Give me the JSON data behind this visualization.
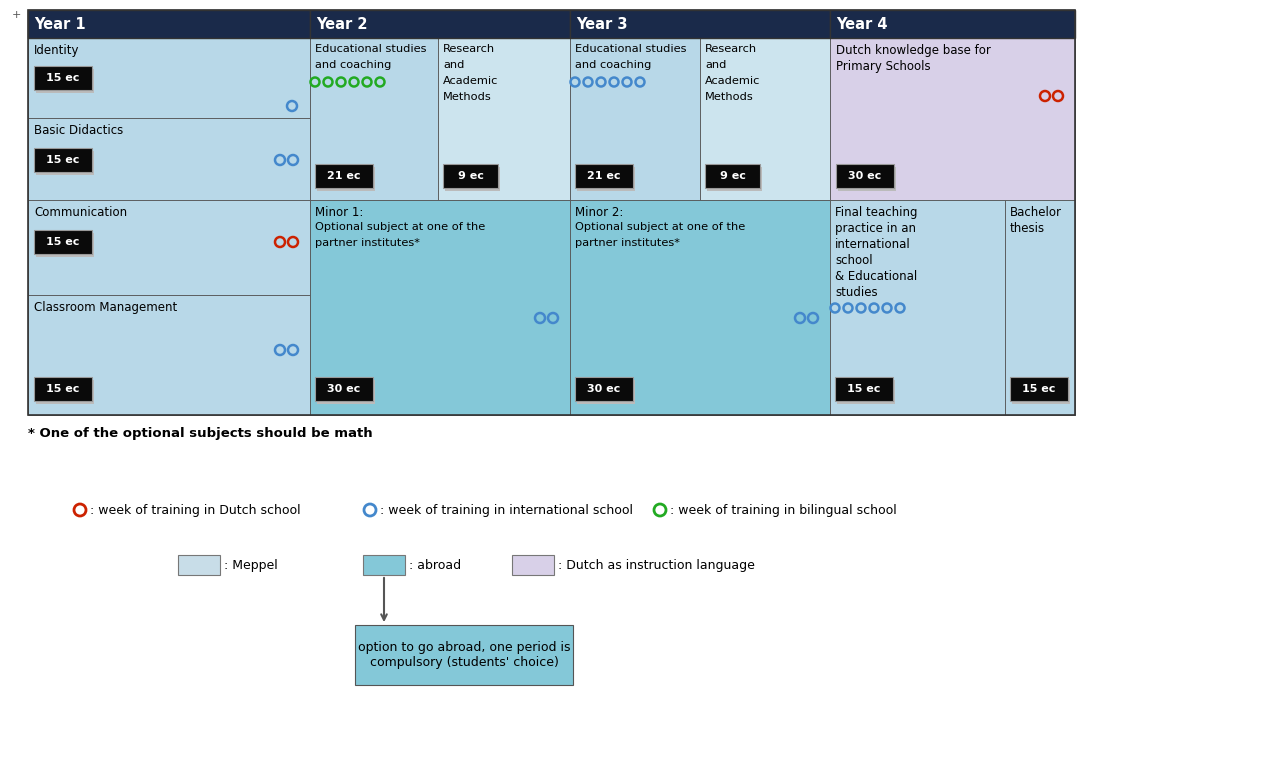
{
  "header_color": "#1a2a4a",
  "header_text_color": "#ffffff",
  "light_blue": "#b8d8e8",
  "lighter_blue": "#cce4ee",
  "lavender": "#d8d0e8",
  "abroad_blue": "#84c8d8",
  "meppel_blue": "#c8dde8",
  "footnote": "* One of the optional subjects should be math",
  "legend_dutch": ": week of training in Dutch school",
  "legend_intl": ": week of training in international school",
  "legend_bilingual": ": week of training in bilingual school",
  "legend_meppel": ": Meppel",
  "legend_abroad": ": abroad",
  "legend_dutch_lang": ": Dutch as instruction language",
  "callout_text": "option to go abroad, one period is\ncompulsory (students' choice)",
  "bg_color": "#ffffff",
  "red_circle": "#cc2200",
  "blue_circle": "#4488cc",
  "green_circle": "#22aa22"
}
